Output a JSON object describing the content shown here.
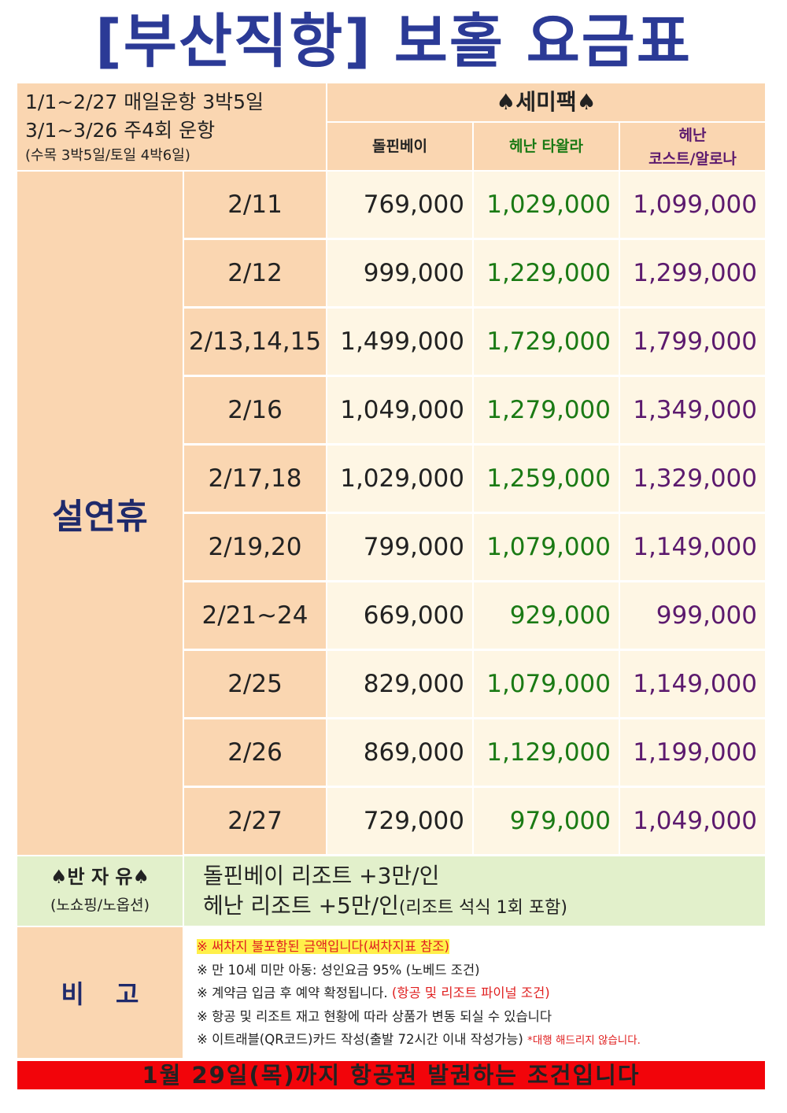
{
  "title": "[부산직항] 보홀 요금표",
  "header": {
    "schedule_line1": "1/1~2/27 매일운항 3박5일",
    "schedule_line2": "3/1~3/26 주4회 운항",
    "schedule_line3": "(수목 3박5일/토일 4박6일)",
    "package_title": "♠세미팩♠",
    "columns": [
      {
        "label": "돌핀베이",
        "color": "#222222"
      },
      {
        "label": "헤난 타왈라",
        "color": "#1a7a14"
      },
      {
        "label_line1": "헤난",
        "label_line2": "코스트/알로나",
        "color": "#5c1a6e"
      }
    ]
  },
  "side_label": "설연휴",
  "rows": [
    {
      "date": "2/11",
      "prices": [
        "769,000",
        "1,029,000",
        "1,099,000"
      ]
    },
    {
      "date": "2/12",
      "prices": [
        "999,000",
        "1,229,000",
        "1,299,000"
      ]
    },
    {
      "date": "2/13,14,15",
      "prices": [
        "1,499,000",
        "1,729,000",
        "1,799,000"
      ]
    },
    {
      "date": "2/16",
      "prices": [
        "1,049,000",
        "1,279,000",
        "1,349,000"
      ]
    },
    {
      "date": "2/17,18",
      "prices": [
        "1,029,000",
        "1,259,000",
        "1,329,000"
      ]
    },
    {
      "date": "2/19,20",
      "prices": [
        "799,000",
        "1,079,000",
        "1,149,000"
      ]
    },
    {
      "date": "2/21~24",
      "prices": [
        "669,000",
        "929,000",
        "999,000"
      ]
    },
    {
      "date": "2/25",
      "prices": [
        "829,000",
        "1,079,000",
        "1,149,000"
      ]
    },
    {
      "date": "2/26",
      "prices": [
        "869,000",
        "1,129,000",
        "1,199,000"
      ]
    },
    {
      "date": "2/27",
      "prices": [
        "729,000",
        "979,000",
        "1,049,000"
      ]
    }
  ],
  "half_free": {
    "label": "♠반 자 유♠",
    "sub": "(노쇼핑/노옵션)",
    "line1": "돌핀베이 리조트 +3만/인",
    "line2_main": "헤난 리조트 +5만/인",
    "line2_small": "(리조트 석식 1회 포함)"
  },
  "notes": {
    "label": "비고",
    "n1": "※ 써차지 불포함된 금액입니다(써차지표 참조)",
    "n2": "※ 만 10세 미만 아동: 성인요금 95% (노베드 조건)",
    "n3_main": "※ 계약금 입금 후 예약 확정됩니다.",
    "n3_red": "(항공 및 리조트 파이널 조건)",
    "n4": "※ 항공 및 리조트 재고 현황에 따라 상품가 변동 되실 수 있습니다",
    "n5_main": "※ 이트래블(QR코드)카드 작성(출발 72시간 이내 작성가능)",
    "n5_small": "*대행 해드리지 않습니다."
  },
  "footer": "1월 29일(목)까지 항공권 발권하는 조건입니다"
}
